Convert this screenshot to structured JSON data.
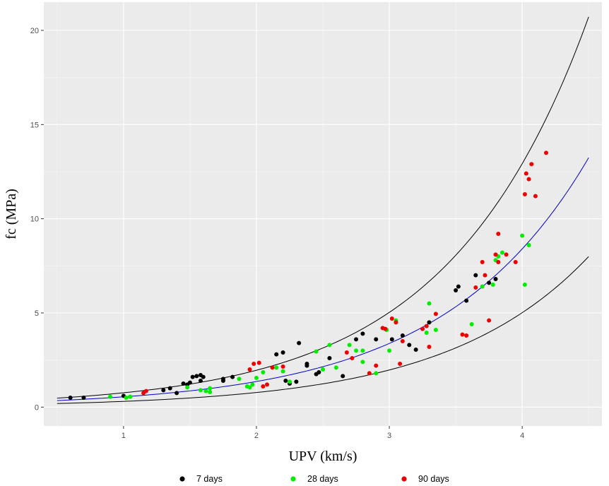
{
  "chart_data": {
    "type": "scatter",
    "title": "",
    "xlabel": "UPV (km/s)",
    "ylabel": "fc (MPa)",
    "xlim": [
      0.4,
      4.6
    ],
    "ylim": [
      -1,
      21.5
    ],
    "x_ticks": [
      1,
      2,
      3,
      4
    ],
    "y_ticks": [
      0,
      5,
      10,
      15,
      20
    ],
    "x_tick_labels": [
      "1",
      "2",
      "3",
      "4"
    ],
    "y_tick_labels": [
      "0",
      "5",
      "10",
      "15",
      "20"
    ],
    "grid": true,
    "legend_position": "bottom",
    "background": "#ebebeb",
    "series": [
      {
        "name": "7 days",
        "color": "#000000",
        "points": [
          [
            0.6,
            0.5
          ],
          [
            0.7,
            0.5
          ],
          [
            1.0,
            0.6
          ],
          [
            1.3,
            0.9
          ],
          [
            1.35,
            1.0
          ],
          [
            1.4,
            0.75
          ],
          [
            1.45,
            1.25
          ],
          [
            1.48,
            1.2
          ],
          [
            1.5,
            1.3
          ],
          [
            1.52,
            1.6
          ],
          [
            1.55,
            1.65
          ],
          [
            1.58,
            1.7
          ],
          [
            1.6,
            1.6
          ],
          [
            1.58,
            1.4
          ],
          [
            1.75,
            1.5
          ],
          [
            1.75,
            1.4
          ],
          [
            1.82,
            1.6
          ],
          [
            2.15,
            2.8
          ],
          [
            2.2,
            2.9
          ],
          [
            2.22,
            1.4
          ],
          [
            2.25,
            1.25
          ],
          [
            2.3,
            1.35
          ],
          [
            2.32,
            3.4
          ],
          [
            2.38,
            2.2
          ],
          [
            2.38,
            2.3
          ],
          [
            2.45,
            1.75
          ],
          [
            2.47,
            1.85
          ],
          [
            2.55,
            2.6
          ],
          [
            2.65,
            1.65
          ],
          [
            2.75,
            3.6
          ],
          [
            2.8,
            3.9
          ],
          [
            2.9,
            3.6
          ],
          [
            3.02,
            3.6
          ],
          [
            3.1,
            3.8
          ],
          [
            3.15,
            3.3
          ],
          [
            3.2,
            3.05
          ],
          [
            3.3,
            4.5
          ],
          [
            3.5,
            6.2
          ],
          [
            3.52,
            6.4
          ],
          [
            3.58,
            5.65
          ],
          [
            3.65,
            7.0
          ],
          [
            3.75,
            6.6
          ],
          [
            3.8,
            6.8
          ]
        ]
      },
      {
        "name": "28 days",
        "color": "#00ee00",
        "points": [
          [
            0.9,
            0.55
          ],
          [
            1.02,
            0.5
          ],
          [
            1.05,
            0.55
          ],
          [
            1.48,
            1.05
          ],
          [
            1.58,
            0.9
          ],
          [
            1.62,
            0.85
          ],
          [
            1.65,
            1.0
          ],
          [
            1.65,
            0.8
          ],
          [
            1.87,
            1.5
          ],
          [
            1.93,
            1.1
          ],
          [
            1.95,
            1.05
          ],
          [
            1.97,
            1.2
          ],
          [
            2.0,
            1.55
          ],
          [
            2.05,
            1.85
          ],
          [
            2.15,
            2.1
          ],
          [
            2.2,
            1.9
          ],
          [
            2.25,
            1.35
          ],
          [
            2.45,
            2.95
          ],
          [
            2.5,
            2.0
          ],
          [
            2.55,
            3.3
          ],
          [
            2.6,
            2.1
          ],
          [
            2.7,
            3.3
          ],
          [
            2.75,
            3.0
          ],
          [
            2.8,
            3.0
          ],
          [
            2.8,
            2.4
          ],
          [
            2.9,
            1.8
          ],
          [
            2.98,
            4.1
          ],
          [
            3.0,
            3.0
          ],
          [
            3.05,
            4.6
          ],
          [
            3.28,
            3.95
          ],
          [
            3.3,
            5.5
          ],
          [
            3.35,
            4.1
          ],
          [
            3.62,
            4.4
          ],
          [
            3.7,
            6.4
          ],
          [
            3.78,
            6.5
          ],
          [
            3.8,
            7.8
          ],
          [
            3.82,
            8.0
          ],
          [
            3.85,
            8.2
          ],
          [
            4.0,
            9.1
          ],
          [
            4.02,
            6.5
          ],
          [
            4.05,
            8.6
          ]
        ]
      },
      {
        "name": "90 days",
        "color": "#ee0000",
        "points": [
          [
            1.15,
            0.75
          ],
          [
            1.17,
            0.85
          ],
          [
            1.95,
            2.0
          ],
          [
            1.98,
            2.3
          ],
          [
            2.02,
            2.35
          ],
          [
            2.05,
            1.1
          ],
          [
            2.08,
            1.2
          ],
          [
            2.12,
            2.1
          ],
          [
            2.2,
            2.15
          ],
          [
            2.68,
            2.9
          ],
          [
            2.72,
            2.6
          ],
          [
            2.85,
            1.8
          ],
          [
            2.9,
            2.2
          ],
          [
            2.95,
            4.2
          ],
          [
            2.97,
            4.15
          ],
          [
            3.02,
            4.7
          ],
          [
            3.05,
            4.5
          ],
          [
            3.08,
            2.3
          ],
          [
            3.1,
            3.5
          ],
          [
            3.25,
            4.15
          ],
          [
            3.28,
            4.3
          ],
          [
            3.3,
            3.2
          ],
          [
            3.35,
            4.95
          ],
          [
            3.55,
            3.85
          ],
          [
            3.58,
            3.8
          ],
          [
            3.65,
            6.35
          ],
          [
            3.7,
            7.7
          ],
          [
            3.72,
            7.0
          ],
          [
            3.75,
            4.6
          ],
          [
            3.8,
            8.1
          ],
          [
            3.82,
            9.2
          ],
          [
            3.82,
            7.7
          ],
          [
            3.88,
            8.1
          ],
          [
            3.95,
            7.7
          ],
          [
            4.02,
            11.3
          ],
          [
            4.03,
            12.4
          ],
          [
            4.05,
            12.1
          ],
          [
            4.07,
            12.9
          ],
          [
            4.1,
            11.2
          ],
          [
            4.18,
            13.5
          ]
        ]
      }
    ],
    "fitted_lines": [
      {
        "color": "#000000",
        "a": 0.2965,
        "b": 0.9437
      },
      {
        "color": "#0000cc",
        "a": 0.2205,
        "b": 0.91
      },
      {
        "color": "#000000",
        "a": 0.12,
        "b": 0.9331
      }
    ],
    "fit_x_range": [
      0.5,
      4.5
    ]
  }
}
